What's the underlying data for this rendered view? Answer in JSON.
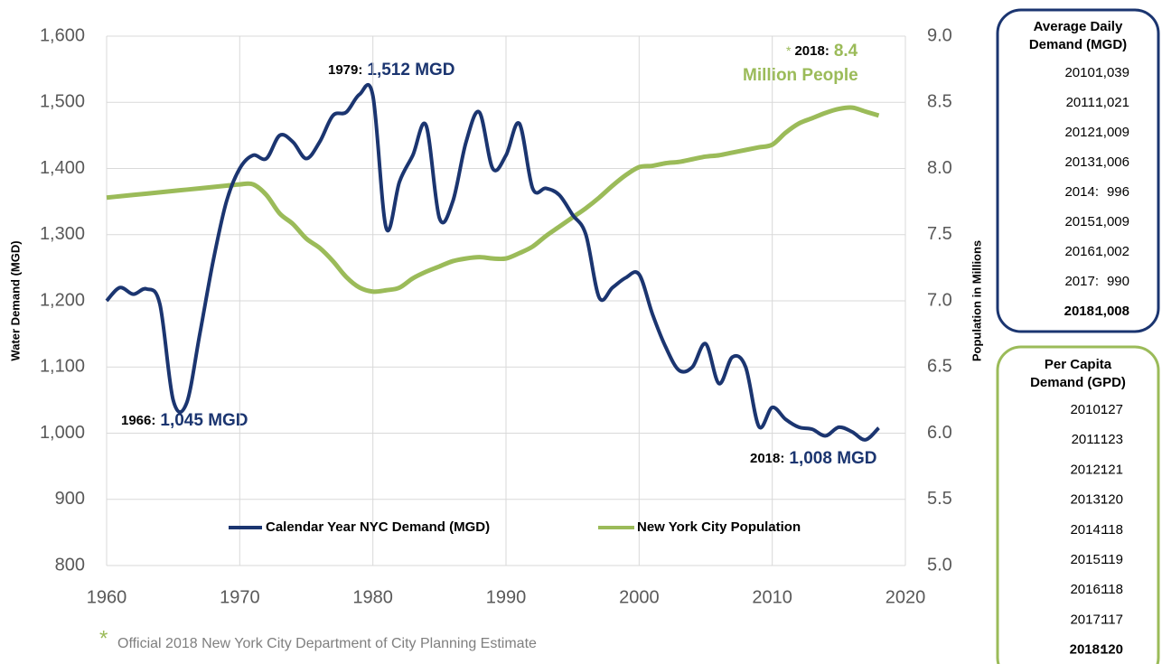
{
  "chart_data": {
    "type": "line",
    "y_label": "Water Demand (MGD)",
    "y2_label": "Population in Millions",
    "x": [
      1960,
      1961,
      1962,
      1963,
      1964,
      1965,
      1966,
      1967,
      1968,
      1969,
      1970,
      1971,
      1972,
      1973,
      1974,
      1975,
      1976,
      1977,
      1978,
      1979,
      1980,
      1981,
      1982,
      1983,
      1984,
      1985,
      1986,
      1987,
      1988,
      1989,
      1990,
      1991,
      1992,
      1993,
      1994,
      1995,
      1996,
      1997,
      1998,
      1999,
      2000,
      2001,
      2002,
      2003,
      2004,
      2005,
      2006,
      2007,
      2008,
      2009,
      2010,
      2011,
      2012,
      2013,
      2014,
      2015,
      2016,
      2017,
      2018
    ],
    "series": [
      {
        "name": "Calendar Year NYC Demand (MGD)",
        "color": "#1b3570",
        "values": [
          1200,
          1220,
          1210,
          1218,
          1195,
          1050,
          1045,
          1150,
          1260,
          1350,
          1400,
          1420,
          1415,
          1450,
          1440,
          1415,
          1440,
          1480,
          1485,
          1512,
          1510,
          1310,
          1380,
          1420,
          1465,
          1325,
          1350,
          1440,
          1485,
          1400,
          1420,
          1468,
          1370,
          1370,
          1360,
          1330,
          1300,
          1205,
          1220,
          1235,
          1240,
          1180,
          1130,
          1095,
          1100,
          1135,
          1075,
          1115,
          1100,
          1010,
          1039,
          1021,
          1009,
          1006,
          996,
          1009,
          1002,
          990,
          1008
        ]
      },
      {
        "name": "New York City Population",
        "color": "#9bbb59",
        "axis": "y2",
        "values": [
          7.78,
          7.79,
          7.8,
          7.81,
          7.82,
          7.83,
          7.84,
          7.85,
          7.86,
          7.87,
          7.88,
          7.88,
          7.8,
          7.66,
          7.58,
          7.47,
          7.4,
          7.3,
          7.18,
          7.1,
          7.07,
          7.08,
          7.1,
          7.17,
          7.22,
          7.26,
          7.3,
          7.32,
          7.33,
          7.32,
          7.32,
          7.36,
          7.41,
          7.49,
          7.56,
          7.63,
          7.7,
          7.78,
          7.87,
          7.95,
          8.01,
          8.02,
          8.04,
          8.05,
          8.07,
          8.09,
          8.1,
          8.12,
          8.14,
          8.16,
          8.18,
          8.27,
          8.34,
          8.38,
          8.42,
          8.45,
          8.46,
          8.43,
          8.4
        ]
      }
    ],
    "xlim": [
      1960,
      2020
    ],
    "xticks": [
      1960,
      1970,
      1980,
      1990,
      2000,
      2010,
      2020
    ],
    "ylim": [
      800,
      1600
    ],
    "yticks": [
      800,
      900,
      {
        "value": 1000,
        "label": "1,000"
      },
      {
        "value": 1100,
        "label": "1,100"
      },
      {
        "value": 1200,
        "label": "1,200"
      },
      {
        "value": 1300,
        "label": "1,300"
      },
      {
        "value": 1400,
        "label": "1,400"
      },
      {
        "value": 1500,
        "label": "1,500"
      },
      {
        "value": 1600,
        "label": "1,600"
      }
    ],
    "y2lim": [
      5,
      9
    ],
    "y2ticks": [
      {
        "value": 5,
        "label": "5.0"
      },
      5.5,
      {
        "value": 6,
        "label": "6.0"
      },
      6.5,
      {
        "value": 7,
        "label": "7.0"
      },
      7.5,
      {
        "value": 8,
        "label": "8.0"
      },
      8.5,
      {
        "value": 9,
        "label": "9.0"
      }
    ],
    "grid": true,
    "legend": "bottom",
    "annotations": [
      {
        "year": "1979:",
        "text": "1,512 MGD"
      },
      {
        "year": "1966:",
        "text": "1,045 MGD"
      },
      {
        "year": "2018:",
        "text": "1,008 MGD"
      },
      {
        "mark": "*",
        "year": "2018:",
        "text": "8.4",
        "text2": "Million People"
      }
    ],
    "footnote": {
      "mark": "*",
      "text": "Official 2018 New York City Department of City Planning Estimate"
    }
  },
  "tables": [
    {
      "title": [
        "Average Daily",
        "Demand (MGD)"
      ],
      "rows": [
        [
          "2010:",
          "1,039"
        ],
        [
          "2011:",
          "1,021"
        ],
        [
          "2012:",
          "1,009"
        ],
        [
          "2013:",
          "1,006"
        ],
        [
          "2014:",
          "996"
        ],
        [
          "2015:",
          "1,009"
        ],
        [
          "2016:",
          "1,002"
        ],
        [
          "2017:",
          "990"
        ],
        [
          "2018:",
          "1,008"
        ]
      ]
    },
    {
      "title": [
        "Per Capita",
        "Demand (GPD)"
      ],
      "rows": [
        [
          "2010:",
          "127"
        ],
        [
          "2011:",
          "123"
        ],
        [
          "2012:",
          "121"
        ],
        [
          "2013:",
          "120"
        ],
        [
          "2014:",
          "118"
        ],
        [
          "2015:",
          "119"
        ],
        [
          "2016:",
          "118"
        ],
        [
          "2017:",
          "117"
        ],
        [
          "2018:",
          "120"
        ]
      ]
    }
  ]
}
